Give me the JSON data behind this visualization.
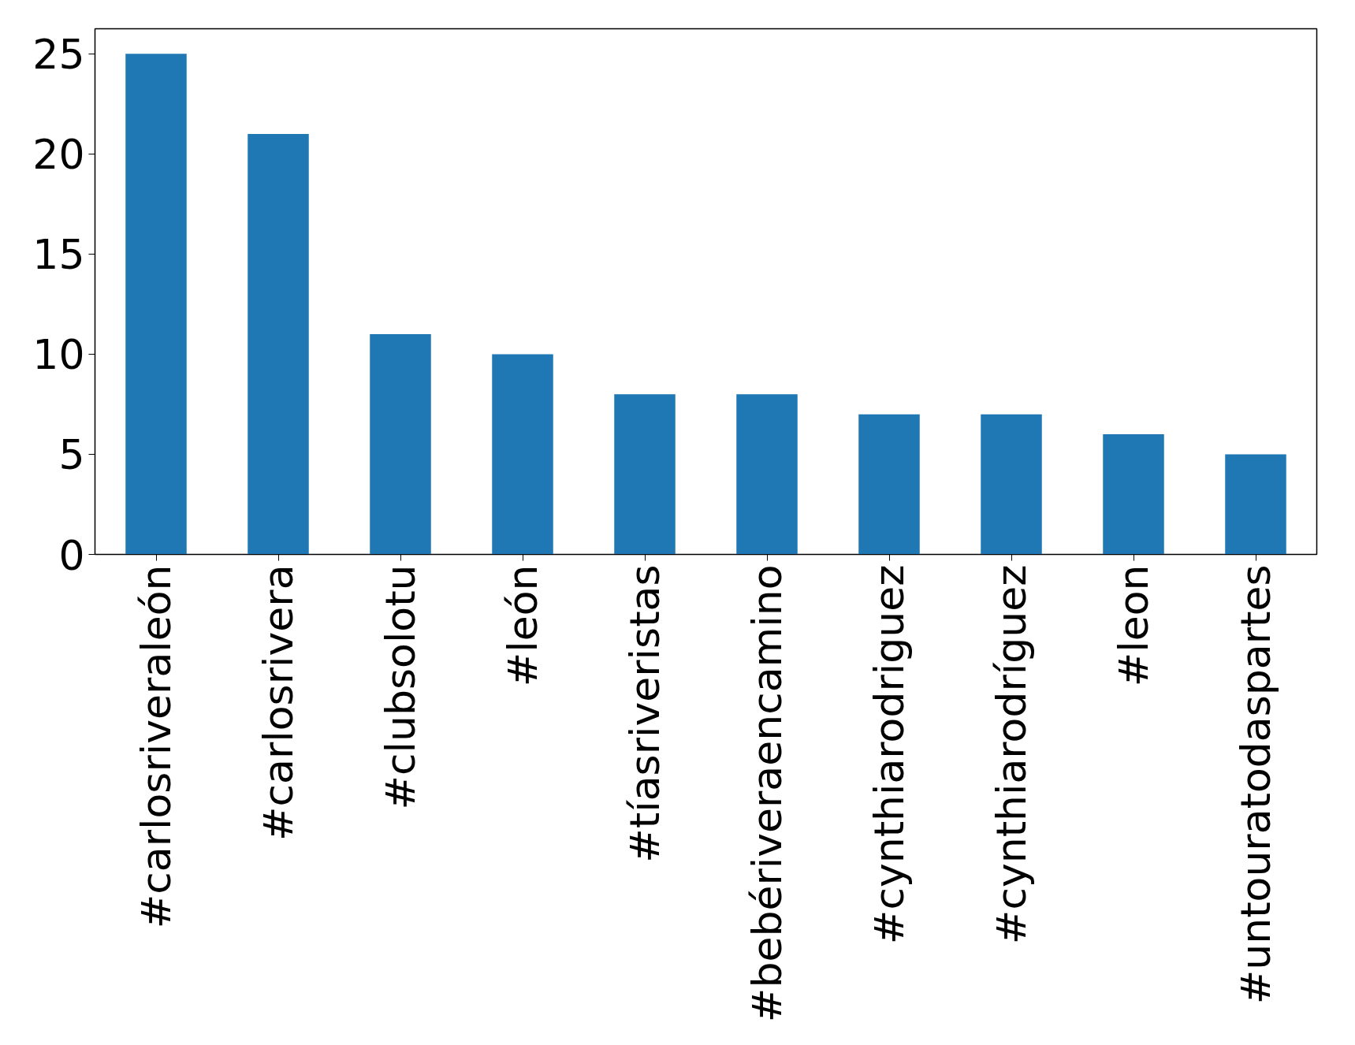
{
  "chart_data": {
    "type": "bar",
    "categories": [
      "#carlosriveraleón",
      "#carlosrivera",
      "#clubsolotu",
      "#león",
      "#tíasriveristas",
      "#bebériveraencamino",
      "#cynthiarodriguez",
      "#cynthiarodríguez",
      "#leon",
      "#untouratodaspartes"
    ],
    "values": [
      25,
      21,
      11,
      10,
      8,
      8,
      7,
      7,
      6,
      5
    ],
    "color": "#1f77b4",
    "ylim": [
      0,
      26.25
    ],
    "yticks": [
      0,
      5,
      10,
      15,
      20,
      25
    ],
    "grid": false
  }
}
